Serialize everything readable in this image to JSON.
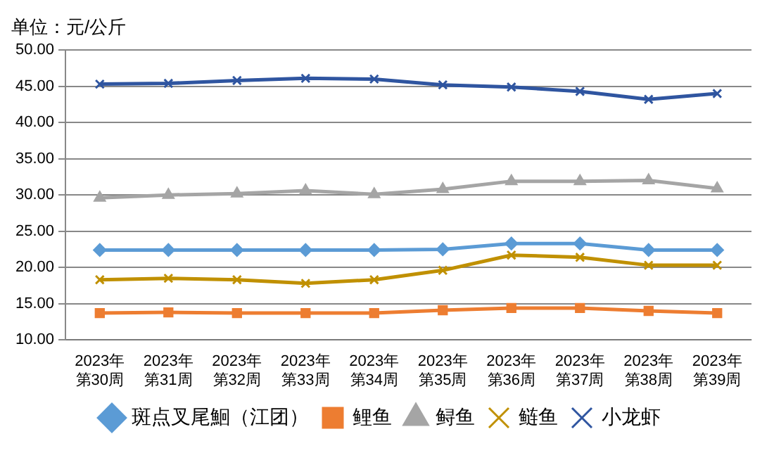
{
  "chart_data": {
    "type": "line",
    "title": "单位：元/公斤",
    "categories": [
      "2023年第30周",
      "2023年第31周",
      "2023年第32周",
      "2023年第33周",
      "2023年第34周",
      "2023年第35周",
      "2023年第36周",
      "2023年第37周",
      "2023年第38周",
      "2023年第39周"
    ],
    "series": [
      {
        "name": "斑点叉尾鮰（江团）",
        "color": "#5b9bd5",
        "marker": "diamond",
        "values": [
          22.4,
          22.4,
          22.4,
          22.4,
          22.4,
          22.5,
          23.3,
          23.3,
          22.4,
          22.4
        ]
      },
      {
        "name": "鲤鱼",
        "color": "#ed7d31",
        "marker": "square",
        "values": [
          13.7,
          13.8,
          13.7,
          13.7,
          13.7,
          14.1,
          14.4,
          14.4,
          14.0,
          13.7
        ]
      },
      {
        "name": "鲟鱼",
        "color": "#a5a5a5",
        "marker": "triangle",
        "values": [
          29.6,
          30.0,
          30.2,
          30.6,
          30.1,
          30.8,
          31.9,
          31.9,
          32.0,
          30.9
        ]
      },
      {
        "name": "鲢鱼",
        "color": "#c09000",
        "marker": "cross",
        "values": [
          18.3,
          18.5,
          18.3,
          17.8,
          18.3,
          19.6,
          21.7,
          21.4,
          20.3,
          20.3
        ]
      },
      {
        "name": "小龙虾",
        "color": "#2f55a0",
        "marker": "cross",
        "values": [
          45.3,
          45.4,
          45.8,
          46.1,
          46.0,
          45.2,
          44.9,
          44.3,
          43.2,
          44.0
        ]
      }
    ],
    "ylim": [
      10,
      50
    ],
    "yticks": [
      {
        "value": 10,
        "label": "10.00"
      },
      {
        "value": 15,
        "label": "15.00"
      },
      {
        "value": 20,
        "label": "20.00"
      },
      {
        "value": 25,
        "label": "25.00"
      },
      {
        "value": 30,
        "label": "30.00"
      },
      {
        "value": 35,
        "label": "35.00"
      },
      {
        "value": 40,
        "label": "40.00"
      },
      {
        "value": 45,
        "label": "45.00"
      },
      {
        "value": 50,
        "label": "50.00"
      }
    ],
    "grid": "y",
    "legend": "bottom",
    "line_style": "solid"
  }
}
